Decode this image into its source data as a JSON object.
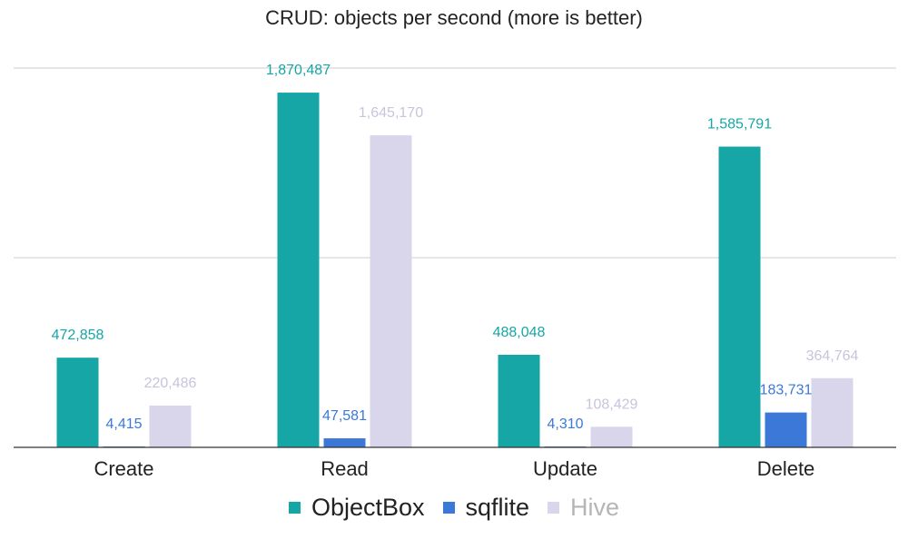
{
  "chart_data": {
    "type": "bar",
    "title": "CRUD: objects per second (more is better)",
    "xlabel": "",
    "ylabel": "",
    "categories": [
      "Create",
      "Read",
      "Update",
      "Delete"
    ],
    "series": [
      {
        "name": "ObjectBox",
        "color": "#17a6a6",
        "values": [
          472858,
          1870487,
          488048,
          1585791
        ],
        "labels": [
          "472,858",
          "1,870,487",
          "488,048",
          "1,585,791"
        ]
      },
      {
        "name": "sqflite",
        "color": "#3b78d8",
        "values": [
          4415,
          47581,
          4310,
          183731
        ],
        "labels": [
          "4,415",
          "47,581",
          "4,310",
          "183,731"
        ]
      },
      {
        "name": "Hive",
        "color": "#d9d5ea",
        "values": [
          220486,
          1645170,
          108429,
          364764
        ],
        "labels": [
          "220,486",
          "1,645,170",
          "108,429",
          "364,764"
        ]
      }
    ],
    "ylim": [
      0,
      2000000
    ],
    "gridlines": [
      1000000,
      2000000
    ],
    "grid": true,
    "legend_position": "bottom"
  }
}
